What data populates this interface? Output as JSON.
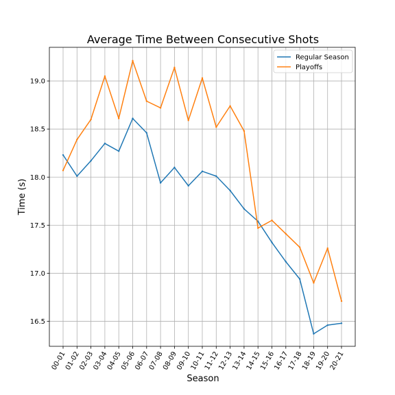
{
  "chart_data": {
    "type": "line",
    "title": "Average Time Between Consecutive Shots",
    "xlabel": "Season",
    "ylabel": "Time (s)",
    "categories": [
      "00-01",
      "01-02",
      "02-03",
      "03-04",
      "04-05",
      "05-06",
      "06-07",
      "07-08",
      "08-09",
      "09-10",
      "10-11",
      "11-12",
      "12-13",
      "13-14",
      "14-15",
      "15-16",
      "16-17",
      "17-18",
      "18-19",
      "19-20",
      "20-21"
    ],
    "series": [
      {
        "name": "Regular Season",
        "color": "#1f77b4",
        "values": [
          18.23,
          18.01,
          18.17,
          18.35,
          18.27,
          18.61,
          18.46,
          17.94,
          18.1,
          17.91,
          18.06,
          18.01,
          17.86,
          17.67,
          17.54,
          17.32,
          17.12,
          16.94,
          16.37,
          16.46,
          16.48
        ]
      },
      {
        "name": "Playoffs",
        "color": "#ff7f0e",
        "values": [
          18.07,
          18.39,
          18.6,
          19.05,
          18.61,
          19.21,
          18.79,
          18.72,
          19.14,
          18.59,
          19.03,
          18.52,
          18.74,
          18.48,
          17.47,
          17.55,
          17.41,
          17.27,
          16.9,
          17.26,
          16.71
        ]
      }
    ],
    "yticks": [
      16.5,
      17.0,
      17.5,
      18.0,
      18.5,
      19.0
    ],
    "ytick_labels": [
      "16.5",
      "17.0",
      "17.5",
      "18.0",
      "18.5",
      "19.0"
    ],
    "ylim": [
      16.24,
      19.35
    ],
    "grid": true,
    "legend_position": "top-right"
  }
}
